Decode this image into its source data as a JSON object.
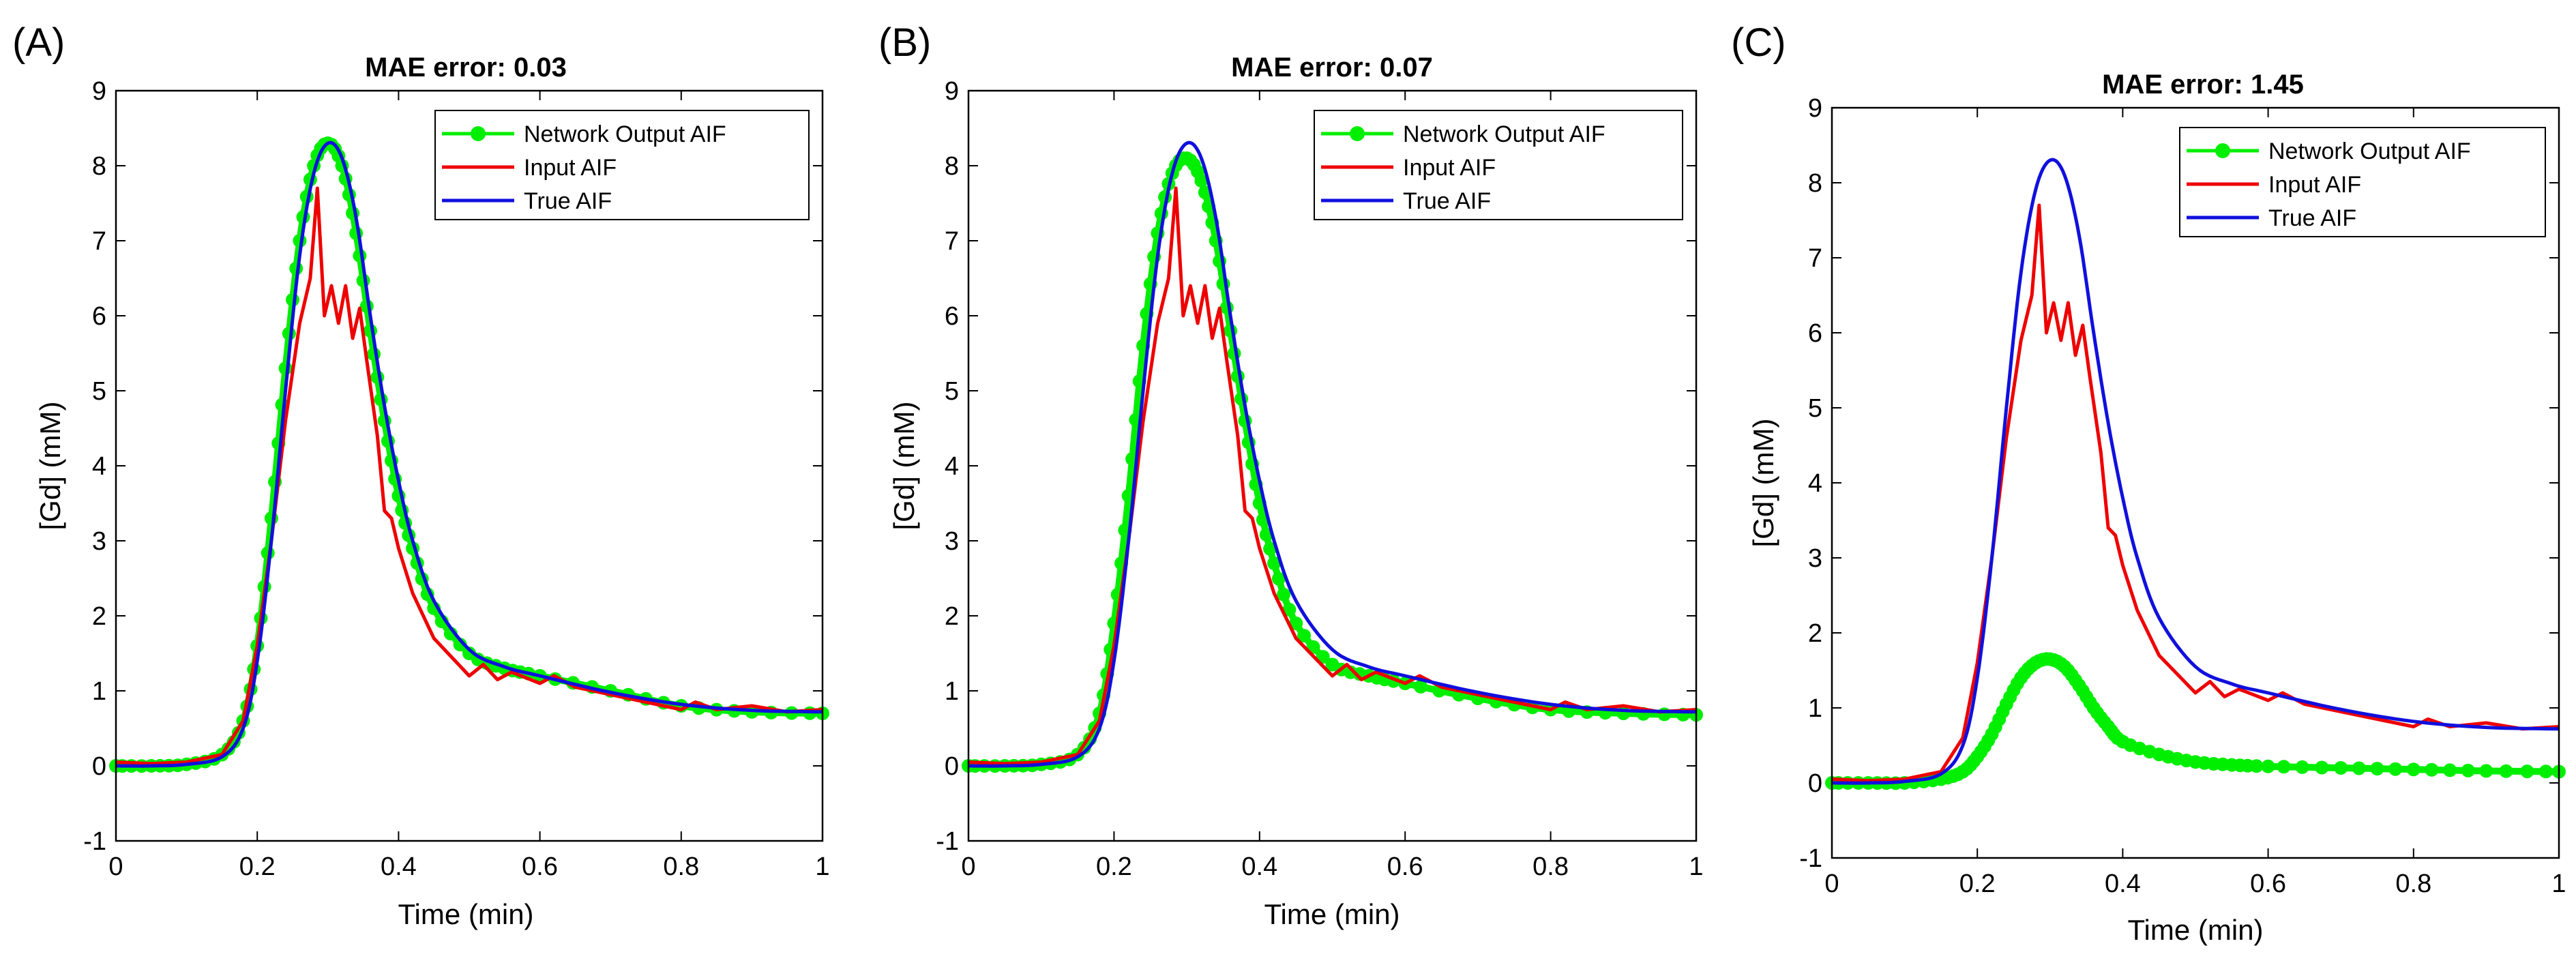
{
  "figure": {
    "panels": [
      {
        "letter": "(A)",
        "title": "MAE error: 0.03",
        "xlabel": "Time (min)",
        "ylabel": "[Gd] (mM)",
        "legend": [
          "Network Output AIF",
          "Input AIF",
          "True AIF"
        ],
        "xticks": [
          "0",
          "0.2",
          "0.4",
          "0.6",
          "0.8",
          "1"
        ],
        "yticks": [
          "-1",
          "0",
          "1",
          "2",
          "3",
          "4",
          "5",
          "6",
          "7",
          "8",
          "9"
        ]
      },
      {
        "letter": "(B)",
        "title": "MAE error: 0.07",
        "xlabel": "Time (min)",
        "ylabel": "[Gd] (mM)",
        "legend": [
          "Network Output AIF",
          "Input AIF",
          "True AIF"
        ],
        "xticks": [
          "0",
          "0.2",
          "0.4",
          "0.6",
          "0.8",
          "1"
        ],
        "yticks": [
          "-1",
          "0",
          "1",
          "2",
          "3",
          "4",
          "5",
          "6",
          "7",
          "8",
          "9"
        ]
      },
      {
        "letter": "(C)",
        "title": "MAE error: 1.45",
        "xlabel": "Time (min)",
        "ylabel": "[Gd] (mM)",
        "legend": [
          "Network Output AIF",
          "Input AIF",
          "True AIF"
        ],
        "xticks": [
          "0",
          "0.2",
          "0.4",
          "0.6",
          "0.8",
          "1"
        ],
        "yticks": [
          "-1",
          "0",
          "1",
          "2",
          "3",
          "4",
          "5",
          "6",
          "7",
          "8",
          "9"
        ]
      }
    ]
  },
  "colors": {
    "network": "#00ee00",
    "input": "#ee0000",
    "true": "#1010dd"
  },
  "chart_data": [
    {
      "type": "line",
      "title": "MAE error: 0.03",
      "xlabel": "Time (min)",
      "ylabel": "[Gd] (mM)",
      "xlim": [
        0,
        1
      ],
      "ylim": [
        -1,
        9
      ],
      "legend_position": "top-right",
      "series": [
        {
          "name": "Network Output AIF",
          "marker": "dot",
          "x": [
            0,
            0.05,
            0.1,
            0.15,
            0.18,
            0.2,
            0.22,
            0.24,
            0.26,
            0.28,
            0.3,
            0.32,
            0.34,
            0.36,
            0.38,
            0.4,
            0.42,
            0.45,
            0.5,
            0.55,
            0.6,
            0.7,
            0.8,
            0.9,
            1.0
          ],
          "y": [
            0,
            0,
            0.02,
            0.15,
            0.6,
            1.6,
            3.3,
            5.3,
            7.0,
            8.0,
            8.3,
            8.0,
            7.1,
            5.8,
            4.6,
            3.6,
            2.9,
            2.1,
            1.5,
            1.3,
            1.2,
            1.0,
            0.8,
            0.72,
            0.7
          ]
        },
        {
          "name": "Input AIF",
          "x": [
            0,
            0.05,
            0.1,
            0.15,
            0.18,
            0.2,
            0.22,
            0.24,
            0.26,
            0.275,
            0.285,
            0.295,
            0.305,
            0.315,
            0.325,
            0.335,
            0.345,
            0.355,
            0.37,
            0.38,
            0.39,
            0.4,
            0.42,
            0.45,
            0.48,
            0.5,
            0.52,
            0.54,
            0.56,
            0.6,
            0.62,
            0.65,
            0.7,
            0.75,
            0.8,
            0.82,
            0.85,
            0.9,
            0.95,
            1.0
          ],
          "y": [
            0.05,
            0.03,
            0.05,
            0.15,
            0.6,
            1.6,
            3.0,
            4.6,
            5.9,
            6.5,
            7.7,
            6.0,
            6.4,
            5.9,
            6.4,
            5.7,
            6.1,
            5.4,
            4.4,
            3.4,
            3.3,
            2.9,
            2.3,
            1.7,
            1.4,
            1.2,
            1.35,
            1.15,
            1.25,
            1.1,
            1.2,
            1.05,
            0.95,
            0.85,
            0.75,
            0.85,
            0.75,
            0.8,
            0.72,
            0.75
          ]
        },
        {
          "name": "True AIF",
          "x": [
            0,
            0.05,
            0.1,
            0.15,
            0.18,
            0.2,
            0.22,
            0.24,
            0.26,
            0.28,
            0.3,
            0.32,
            0.34,
            0.36,
            0.38,
            0.4,
            0.42,
            0.45,
            0.5,
            0.55,
            0.6,
            0.7,
            0.8,
            0.9,
            1.0
          ],
          "y": [
            0,
            0,
            0.02,
            0.12,
            0.5,
            1.4,
            3.0,
            5.0,
            6.8,
            7.9,
            8.3,
            8.1,
            7.3,
            6.0,
            4.8,
            3.8,
            3.0,
            2.2,
            1.55,
            1.32,
            1.2,
            0.98,
            0.82,
            0.74,
            0.72
          ]
        }
      ]
    },
    {
      "type": "line",
      "title": "MAE error: 0.07",
      "xlabel": "Time (min)",
      "ylabel": "[Gd] (mM)",
      "xlim": [
        0,
        1
      ],
      "ylim": [
        -1,
        9
      ],
      "legend_position": "top-right",
      "series": [
        {
          "name": "Network Output AIF",
          "marker": "dot",
          "x": [
            0,
            0.05,
            0.1,
            0.15,
            0.18,
            0.2,
            0.22,
            0.24,
            0.26,
            0.28,
            0.3,
            0.32,
            0.34,
            0.36,
            0.38,
            0.4,
            0.42,
            0.45,
            0.5,
            0.55,
            0.6,
            0.7,
            0.8,
            0.9,
            1.0
          ],
          "y": [
            0,
            0,
            0.02,
            0.15,
            0.7,
            1.9,
            3.6,
            5.6,
            7.1,
            7.9,
            8.1,
            7.8,
            7.0,
            5.8,
            4.6,
            3.5,
            2.7,
            1.9,
            1.35,
            1.2,
            1.1,
            0.9,
            0.75,
            0.7,
            0.68
          ]
        },
        {
          "name": "Input AIF",
          "x": [
            0,
            0.05,
            0.1,
            0.15,
            0.18,
            0.2,
            0.22,
            0.24,
            0.26,
            0.275,
            0.285,
            0.295,
            0.305,
            0.315,
            0.325,
            0.335,
            0.345,
            0.355,
            0.37,
            0.38,
            0.39,
            0.4,
            0.42,
            0.45,
            0.48,
            0.5,
            0.52,
            0.54,
            0.56,
            0.6,
            0.62,
            0.65,
            0.7,
            0.75,
            0.8,
            0.82,
            0.85,
            0.9,
            0.95,
            1.0
          ],
          "y": [
            0.05,
            0.03,
            0.05,
            0.15,
            0.6,
            1.6,
            3.0,
            4.6,
            5.9,
            6.5,
            7.7,
            6.0,
            6.4,
            5.9,
            6.4,
            5.7,
            6.1,
            5.4,
            4.4,
            3.4,
            3.3,
            2.9,
            2.3,
            1.7,
            1.4,
            1.2,
            1.35,
            1.15,
            1.25,
            1.1,
            1.2,
            1.05,
            0.95,
            0.85,
            0.75,
            0.85,
            0.75,
            0.8,
            0.72,
            0.75
          ]
        },
        {
          "name": "True AIF",
          "x": [
            0,
            0.05,
            0.1,
            0.15,
            0.18,
            0.2,
            0.22,
            0.24,
            0.26,
            0.28,
            0.3,
            0.32,
            0.34,
            0.36,
            0.38,
            0.4,
            0.42,
            0.45,
            0.5,
            0.55,
            0.6,
            0.7,
            0.8,
            0.9,
            1.0
          ],
          "y": [
            0,
            0,
            0.02,
            0.12,
            0.5,
            1.4,
            3.0,
            5.0,
            6.8,
            7.9,
            8.3,
            8.1,
            7.3,
            6.0,
            4.8,
            3.8,
            3.0,
            2.2,
            1.55,
            1.32,
            1.2,
            0.98,
            0.82,
            0.74,
            0.72
          ]
        }
      ]
    },
    {
      "type": "line",
      "title": "MAE error: 1.45",
      "xlabel": "Time (min)",
      "ylabel": "[Gd] (mM)",
      "xlim": [
        0,
        1
      ],
      "ylim": [
        -1,
        9
      ],
      "legend_position": "top-right",
      "series": [
        {
          "name": "Network Output AIF",
          "marker": "dot",
          "x": [
            0,
            0.05,
            0.1,
            0.15,
            0.18,
            0.2,
            0.22,
            0.24,
            0.26,
            0.28,
            0.3,
            0.32,
            0.34,
            0.36,
            0.38,
            0.4,
            0.45,
            0.5,
            0.55,
            0.6,
            0.7,
            0.8,
            0.9,
            1.0
          ],
          "y": [
            0,
            0,
            0,
            0.05,
            0.15,
            0.35,
            0.65,
            1.05,
            1.4,
            1.6,
            1.65,
            1.55,
            1.3,
            1.0,
            0.75,
            0.55,
            0.38,
            0.28,
            0.24,
            0.22,
            0.2,
            0.18,
            0.16,
            0.15
          ]
        },
        {
          "name": "Input AIF",
          "x": [
            0,
            0.05,
            0.1,
            0.15,
            0.18,
            0.2,
            0.22,
            0.24,
            0.26,
            0.275,
            0.285,
            0.295,
            0.305,
            0.315,
            0.325,
            0.335,
            0.345,
            0.355,
            0.37,
            0.38,
            0.39,
            0.4,
            0.42,
            0.45,
            0.48,
            0.5,
            0.52,
            0.54,
            0.56,
            0.6,
            0.62,
            0.65,
            0.7,
            0.75,
            0.8,
            0.82,
            0.85,
            0.9,
            0.95,
            1.0
          ],
          "y": [
            0.05,
            0.03,
            0.05,
            0.15,
            0.6,
            1.6,
            3.0,
            4.6,
            5.9,
            6.5,
            7.7,
            6.0,
            6.4,
            5.9,
            6.4,
            5.7,
            6.1,
            5.4,
            4.4,
            3.4,
            3.3,
            2.9,
            2.3,
            1.7,
            1.4,
            1.2,
            1.35,
            1.15,
            1.25,
            1.1,
            1.2,
            1.05,
            0.95,
            0.85,
            0.75,
            0.85,
            0.75,
            0.8,
            0.72,
            0.75
          ]
        },
        {
          "name": "True AIF",
          "x": [
            0,
            0.05,
            0.1,
            0.15,
            0.18,
            0.2,
            0.22,
            0.24,
            0.26,
            0.28,
            0.3,
            0.32,
            0.34,
            0.36,
            0.38,
            0.4,
            0.42,
            0.45,
            0.5,
            0.55,
            0.6,
            0.7,
            0.8,
            0.9,
            1.0
          ],
          "y": [
            0,
            0,
            0.02,
            0.12,
            0.5,
            1.4,
            3.0,
            5.0,
            6.8,
            7.9,
            8.3,
            8.1,
            7.3,
            6.0,
            4.8,
            3.8,
            3.0,
            2.2,
            1.55,
            1.32,
            1.2,
            0.98,
            0.82,
            0.74,
            0.72
          ]
        }
      ]
    }
  ]
}
